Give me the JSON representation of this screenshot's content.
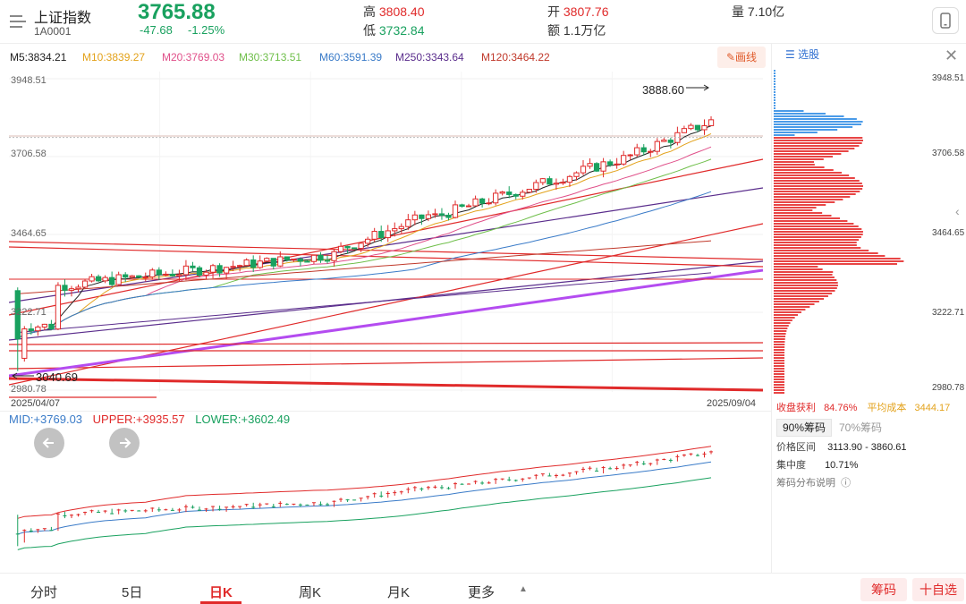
{
  "header": {
    "name": "上证指数",
    "code": "1A0001",
    "price": "3765.88",
    "change": "-47.68",
    "change_pct": "-1.25%",
    "high_label": "高",
    "high": "3808.40",
    "low_label": "低",
    "low": "3732.84",
    "open_label": "开",
    "open": "3807.76",
    "amount_label": "额",
    "amount": "1.1万亿",
    "volume_label": "量",
    "volume": "7.10亿"
  },
  "ma": {
    "m5": "M5:3834.21",
    "m10": "M10:3839.27",
    "m20": "M20:3769.03",
    "m30": "M30:3713.51",
    "m60": "M60:3591.39",
    "m250": "M250:3343.64",
    "m120": "M120:3464.22",
    "draw_button": "画线"
  },
  "colors": {
    "up": "#e02a2a",
    "down": "#19a15f",
    "m5": "#222222",
    "m10": "#e3a21b",
    "m20": "#e0508a",
    "m30": "#6fbf4a",
    "m60": "#3a7bc8",
    "m250": "#5a2d8c",
    "m120": "#c0392b"
  },
  "main_chart": {
    "y_top": "3948.51",
    "y_mid1": "3706.58",
    "y_mid2": "3464.65",
    "y_mid3": "3222.71",
    "y_bottom": "2980.78",
    "high_mark": "3888.60",
    "low_mark": "3040.69",
    "date_start": "2025/04/07",
    "date_end": "2025/09/04"
  },
  "chip_panel": {
    "select_button": "选股",
    "y_top": "3948.51",
    "y_mid1": "3706.58",
    "y_mid2": "3464.65",
    "y_mid3": "3222.71",
    "y_bottom": "2980.78",
    "profit_label": "收盘获利",
    "profit_value": "84.76%",
    "avg_cost_label": "平均成本",
    "avg_cost_value": "3444.17",
    "tab_90": "90%筹码",
    "tab_70": "70%筹码",
    "range_label": "价格区间",
    "range_value": "3113.90 - 3860.61",
    "concentration_label": "集中度",
    "concentration_value": "10.71%",
    "help_label": "筹码分布说明"
  },
  "boll": {
    "mid": "MID:+3769.03",
    "upper": "UPPER:+3935.57",
    "lower": "LOWER:+3602.49"
  },
  "bottom_tabs": [
    "分时",
    "5日",
    "日K",
    "周K",
    "月K",
    "更多"
  ],
  "bottom_buttons": {
    "chips": "筹码",
    "add_fav": "十自选"
  }
}
